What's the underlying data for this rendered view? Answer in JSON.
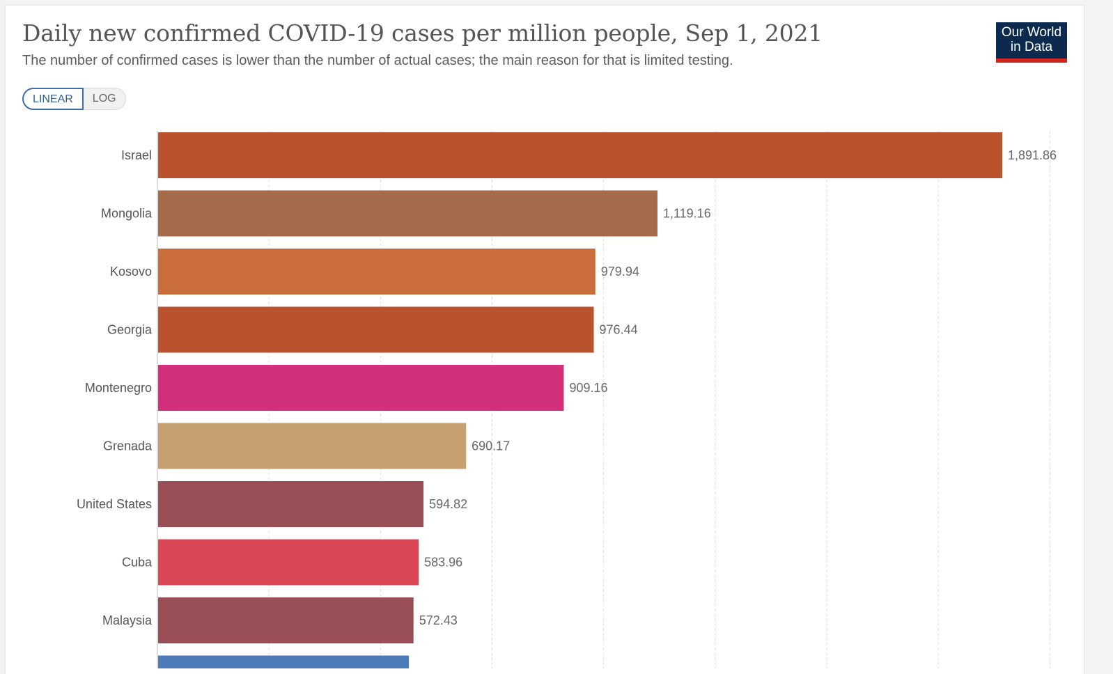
{
  "header": {
    "title": "Daily new confirmed COVID-19 cases per million people, Sep 1, 2021",
    "subtitle": "The number of confirmed cases is lower than the number of actual cases; the main reason for that is limited testing.",
    "logo_line1": "Our World",
    "logo_line2": "in Data"
  },
  "controls": {
    "linear_label": "LINEAR",
    "log_label": "LOG",
    "selected": "LINEAR"
  },
  "chart_data": {
    "type": "bar",
    "orientation": "horizontal",
    "title": "Daily new confirmed COVID-19 cases per million people, Sep 1, 2021",
    "subtitle": "The number of confirmed cases is lower than the number of actual cases; the main reason for that is limited testing.",
    "xlim": [
      0,
      2000
    ],
    "grid": true,
    "grid_style": "dashed vertical",
    "categories": [
      "Israel",
      "Mongolia",
      "Kosovo",
      "Georgia",
      "Montenegro",
      "Grenada",
      "United States",
      "Cuba",
      "Malaysia"
    ],
    "values": [
      1891.86,
      1119.16,
      979.94,
      976.44,
      909.16,
      690.17,
      594.82,
      583.96,
      572.43
    ],
    "value_labels": [
      "1,891.86",
      "1,119.16",
      "979.94",
      "976.44",
      "909.16",
      "690.17",
      "594.82",
      "583.96",
      "572.43"
    ],
    "colors": [
      "#b9522d",
      "#a46a4a",
      "#c96e3a",
      "#b9522d",
      "#d2307a",
      "#c7a072",
      "#9a4f56",
      "#dc4757",
      "#9a4f56"
    ],
    "partial_next_bar_color": "#4d7ab8"
  }
}
